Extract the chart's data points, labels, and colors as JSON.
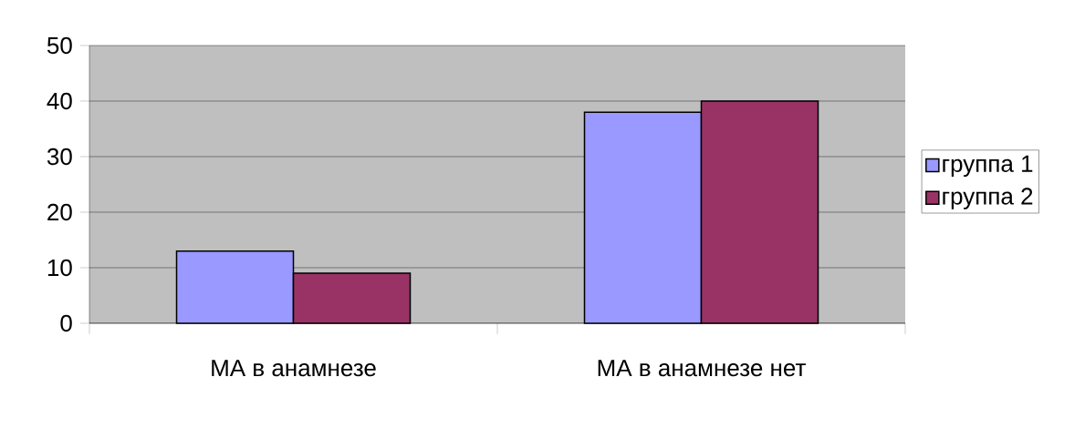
{
  "chart_data": {
    "type": "bar",
    "categories": [
      "МА в анамнезе",
      "МА в анамнезе нет"
    ],
    "series": [
      {
        "name": "группа 1",
        "color": "#9999ff",
        "values": [
          13,
          38
        ]
      },
      {
        "name": "группа 2",
        "color": "#993366",
        "values": [
          9,
          40
        ]
      }
    ],
    "ylim": [
      0,
      50
    ],
    "yticks": [
      0,
      10,
      20,
      30,
      40,
      50
    ],
    "grid": "y",
    "legend": "right"
  }
}
